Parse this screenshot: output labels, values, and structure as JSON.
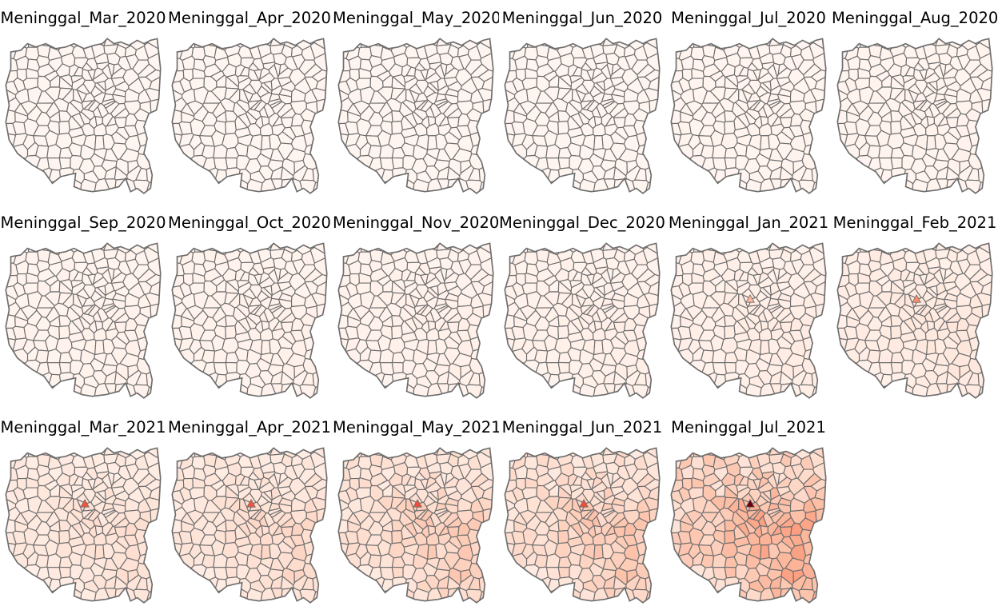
{
  "figure": {
    "fill_palette": [
      "#fff5f0",
      "#fee0d2",
      "#fcbba1",
      "#fc9272",
      "#fb6a4a",
      "#de2d26",
      "#a50f15",
      "#67000d"
    ],
    "border_color": "#6e6e6e",
    "hotspot_marker": "triangle",
    "panels": [
      {
        "label": "Meninggal_Mar_2020",
        "level": 0.0
      },
      {
        "label": "Meninggal_Apr_2020",
        "level": 0.0
      },
      {
        "label": "Meninggal_May_2020",
        "level": 0.0
      },
      {
        "label": "Meninggal_Jun_2020",
        "level": 0.0
      },
      {
        "label": "Meninggal_Jul_2020",
        "level": 0.02
      },
      {
        "label": "Meninggal_Aug_2020",
        "level": 0.03
      },
      {
        "label": "Meninggal_Sep_2020",
        "level": 0.04
      },
      {
        "label": "Meninggal_Oct_2020",
        "level": 0.05
      },
      {
        "label": "Meninggal_Nov_2020",
        "level": 0.06
      },
      {
        "label": "Meninggal_Dec_2020",
        "level": 0.07
      },
      {
        "label": "Meninggal_Jan_2021",
        "level": 0.1,
        "hotspot": 0.3
      },
      {
        "label": "Meninggal_Feb_2021",
        "level": 0.15,
        "hotspot": 0.45
      },
      {
        "label": "Meninggal_Mar_2021",
        "level": 0.22,
        "hotspot": 0.62
      },
      {
        "label": "Meninggal_Apr_2021",
        "level": 0.27,
        "hotspot": 0.62
      },
      {
        "label": "Meninggal_May_2021",
        "level": 0.35,
        "hotspot": 0.64
      },
      {
        "label": "Meninggal_Jun_2021",
        "level": 0.38,
        "hotspot": 0.64
      },
      {
        "label": "Meninggal_Jul_2021",
        "level": 0.55,
        "hotspot": 1.0
      }
    ]
  }
}
